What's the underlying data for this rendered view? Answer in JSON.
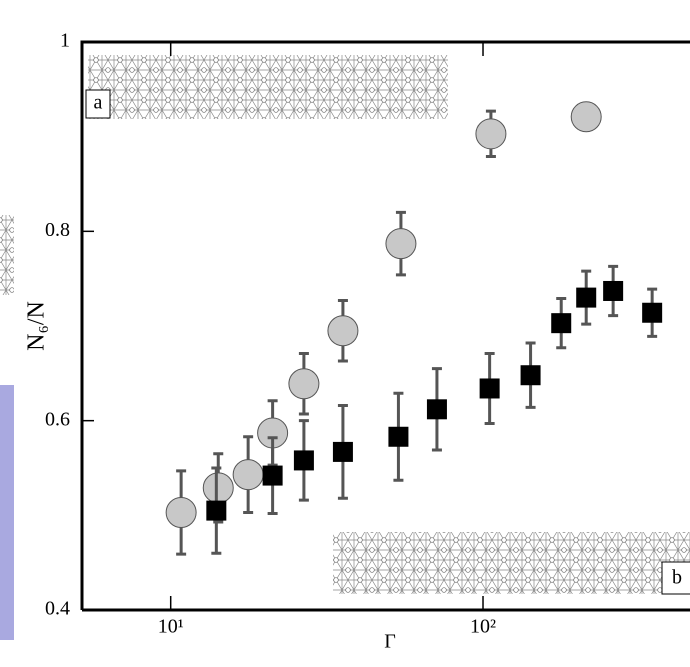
{
  "chart_data": {
    "type": "scatter",
    "xlabel": "Γ",
    "ylabel": "N₆/N",
    "annotations": [
      "a",
      "b"
    ],
    "xscale": "log",
    "xlim": [
      5.2,
      460
    ],
    "ylim": [
      0.4,
      1
    ],
    "xticks": [
      {
        "value": 10,
        "label": "10¹"
      },
      {
        "value": 100,
        "label": "10²"
      }
    ],
    "yticks": [
      0.4,
      0.6,
      0.8,
      1
    ],
    "series": [
      {
        "marker": "circle",
        "color": "#c8c8c8",
        "x": [
          10.8,
          14.2,
          17.7,
          21.2,
          26.7,
          35.6,
          54.6,
          106,
          214
        ],
        "values": [
          0.503,
          0.529,
          0.543,
          0.587,
          0.639,
          0.695,
          0.787,
          0.903,
          0.921
        ],
        "errors": [
          0.044,
          0.036,
          0.04,
          0.034,
          0.032,
          0.032,
          0.033,
          0.024,
          0
        ]
      },
      {
        "marker": "square",
        "color": "#000000",
        "x": [
          14.0,
          21.2,
          26.7,
          35.6,
          53.6,
          71.2,
          105,
          142,
          178,
          214,
          261,
          348
        ],
        "values": [
          0.505,
          0.542,
          0.558,
          0.567,
          0.583,
          0.612,
          0.634,
          0.648,
          0.703,
          0.73,
          0.737,
          0.714
        ],
        "errors": [
          0.045,
          0.04,
          0.042,
          0.049,
          0.046,
          0.043,
          0.037,
          0.034,
          0.026,
          0.028,
          0.026,
          0.025
        ]
      }
    ]
  }
}
